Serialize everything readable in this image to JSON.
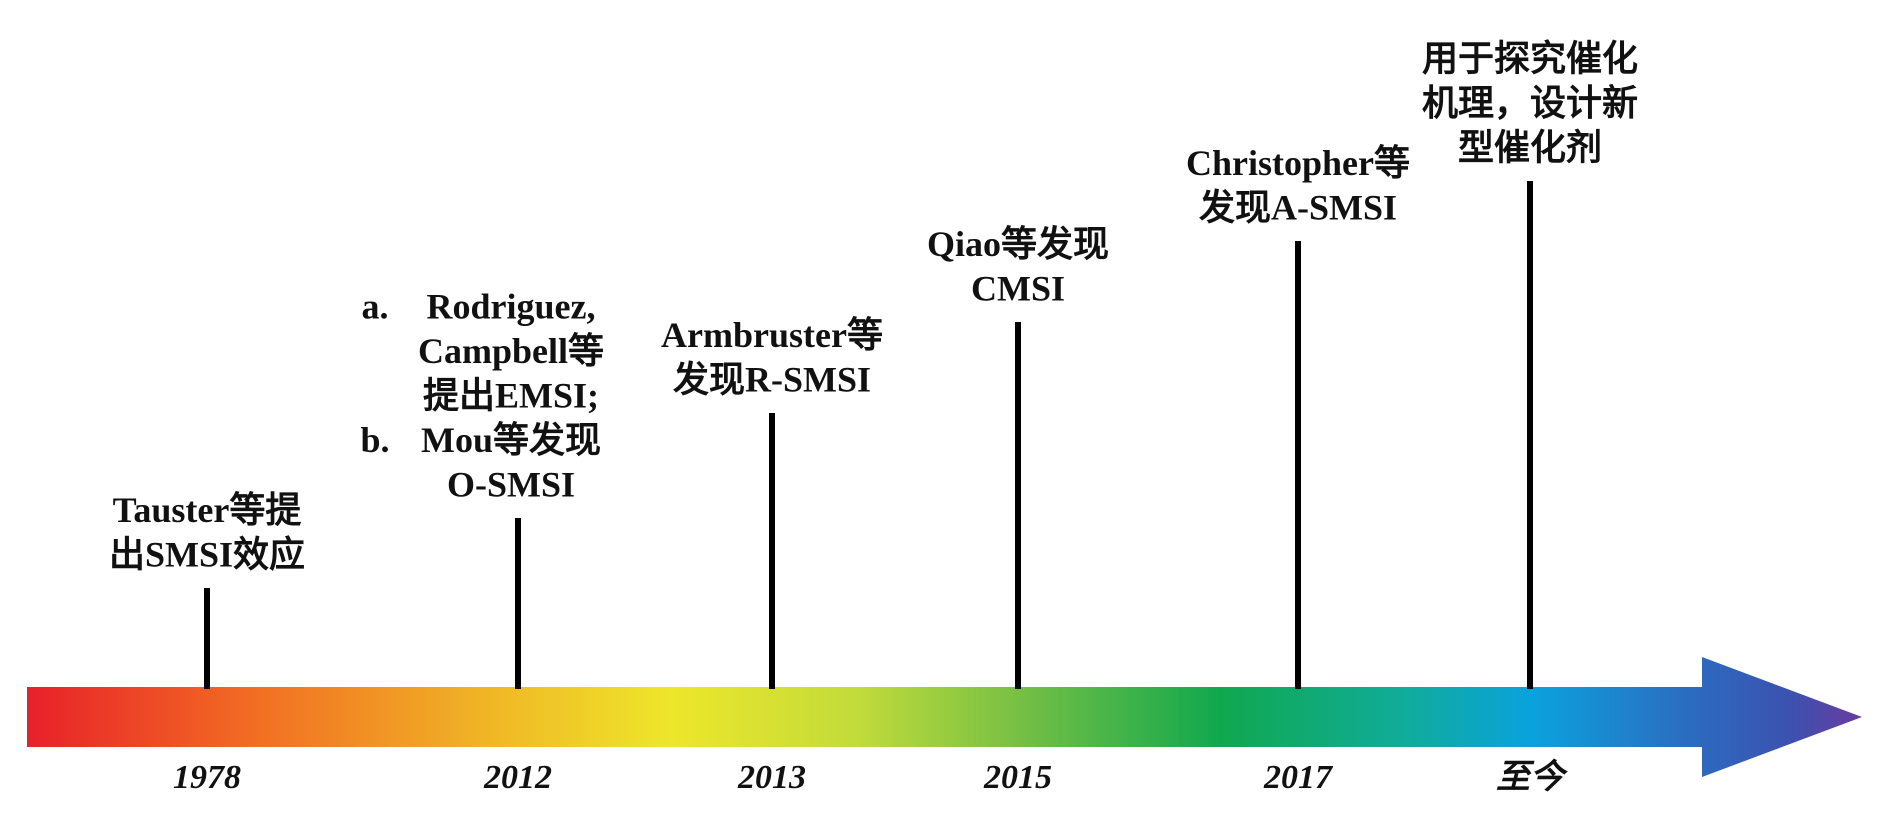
{
  "events": [
    {
      "year": "1978",
      "lines": [
        "Tauster等提",
        "出SMSI效应"
      ]
    },
    {
      "year": "2012",
      "items": [
        {
          "marker": "a.",
          "lines": [
            "Rodriguez,",
            "Campbell等",
            "提出EMSI;"
          ]
        },
        {
          "marker": "b.",
          "lines": [
            "Mou等发现",
            "O-SMSI"
          ]
        }
      ]
    },
    {
      "year": "2013",
      "lines": [
        "Armbruster等",
        "发现R-SMSI"
      ]
    },
    {
      "year": "2015",
      "lines": [
        "Qiao等发现",
        "CMSI"
      ]
    },
    {
      "year": "2017",
      "lines": [
        "Christopher等",
        "发现A-SMSI"
      ]
    },
    {
      "year": "至今",
      "lines": [
        "用于探究催化",
        "机理，设计新",
        "型催化剂"
      ]
    }
  ]
}
